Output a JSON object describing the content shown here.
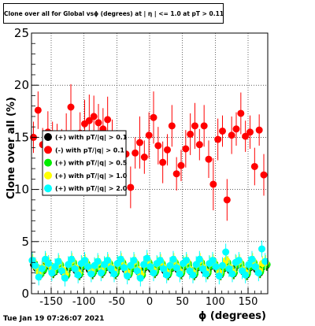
{
  "title": "Clone  over all for Global vsϕ (degrees) at | η | <= 1.0 at pT > 0.11",
  "timestamp": "Tue Jan 19 07:26:07 2021",
  "chart_data": {
    "type": "scatter",
    "xlabel": "ϕ (degrees)",
    "ylabel": "Clone  over all (%)",
    "xlim": [
      -180,
      180
    ],
    "ylim": [
      0,
      25
    ],
    "x_ticks": [
      "-150",
      "-100",
      "-50",
      "0",
      "50",
      "100",
      "150"
    ],
    "y_ticks": [
      "0",
      "5",
      "10",
      "15",
      "20",
      "25"
    ],
    "grid": true,
    "legend_position": "left",
    "legend": [
      {
        "label": "(+) with pT/|q| > 0.1",
        "color": "#000000"
      },
      {
        "label": "(-) with pT/|q| > 0.1",
        "color": "#ff0000"
      },
      {
        "label": "(+) with pT/|q| > 0.5",
        "color": "#00ee00"
      },
      {
        "label": "(+) with pT/|q| > 1.0",
        "color": "#ffff00"
      },
      {
        "label": "(+) with pT/|q| > 2.0",
        "color": "#00ffff"
      }
    ],
    "series": [
      {
        "name": "(-) with pT/|q| > 0.1",
        "color": "#ff0000",
        "x": [
          -177,
          -170,
          -163,
          -155,
          -148,
          -141,
          -134,
          -127,
          -120,
          -113,
          -106,
          -99,
          -92,
          -85,
          -78,
          -71,
          -64,
          -57,
          -50,
          -43,
          -36,
          -29,
          -22,
          -15,
          -8,
          -1,
          6,
          13,
          20,
          27,
          34,
          41,
          48,
          55,
          62,
          69,
          76,
          83,
          90,
          97,
          104,
          111,
          118,
          125,
          132,
          139,
          146,
          153,
          160,
          167,
          174
        ],
        "y": [
          15.0,
          17.6,
          14.3,
          15.5,
          15.1,
          14.8,
          14.2,
          15.3,
          17.9,
          13.8,
          15.4,
          16.3,
          16.6,
          17.0,
          16.4,
          15.8,
          16.7,
          14.9,
          13.1,
          12.6,
          13.4,
          10.2,
          13.5,
          14.5,
          13.1,
          15.2,
          16.9,
          14.2,
          12.6,
          13.8,
          16.1,
          11.5,
          12.3,
          13.9,
          15.3,
          16.1,
          14.3,
          16.1,
          12.9,
          10.5,
          14.8,
          15.6,
          9.0,
          15.2,
          15.8,
          17.3,
          15.1,
          15.5,
          12.2,
          15.7,
          11.4
        ],
        "err": [
          1.5,
          1.8,
          1.6,
          2.0,
          1.4,
          1.5,
          1.6,
          2.0,
          2.2,
          1.5,
          2.0,
          2.3,
          2.5,
          2.0,
          1.8,
          2.0,
          2.2,
          1.8,
          1.5,
          1.6,
          1.8,
          2.0,
          1.5,
          2.5,
          1.6,
          2.2,
          2.5,
          1.8,
          2.0,
          1.5,
          2.0,
          1.6,
          1.5,
          1.8,
          2.0,
          2.2,
          1.5,
          2.0,
          1.8,
          2.5,
          2.0,
          1.5,
          2.0,
          1.8,
          1.6,
          2.0,
          1.5,
          1.6,
          1.8,
          1.5,
          2.0
        ]
      },
      {
        "name": "(+) with pT/|q| > 0.1",
        "color": "#000000",
        "x": [
          -177,
          -172,
          -167,
          -162,
          -157,
          -152,
          -147,
          -142,
          -137,
          -132,
          -127,
          -122,
          -117,
          -112,
          -107,
          -102,
          -97,
          -92,
          -87,
          -82,
          -77,
          -72,
          -67,
          -62,
          -57,
          -52,
          -47,
          -42,
          -37,
          -32,
          -27,
          -22,
          -17,
          -12,
          -7,
          -2,
          3,
          8,
          13,
          18,
          23,
          28,
          33,
          38,
          43,
          48,
          53,
          58,
          63,
          68,
          73,
          78,
          83,
          88,
          93,
          98,
          103,
          108,
          113,
          118,
          123,
          128,
          133,
          138,
          143,
          148,
          153,
          158,
          163,
          168,
          173,
          178
        ],
        "y": [
          2.8,
          2.4,
          1.8,
          2.2,
          2.9,
          2.6,
          2.0,
          2.3,
          2.7,
          2.1,
          1.7,
          2.5,
          2.9,
          2.2,
          1.8,
          2.6,
          2.8,
          2.3,
          1.9,
          2.4,
          2.7,
          2.0,
          2.5,
          2.8,
          2.2,
          1.9,
          2.6,
          2.9,
          2.3,
          1.8,
          2.4,
          2.8,
          2.1,
          1.7,
          2.5,
          2.9,
          2.3,
          2.0,
          2.6,
          2.8,
          2.2,
          1.8,
          2.4,
          2.9,
          2.3,
          1.9,
          2.6,
          2.8,
          2.1,
          1.8,
          2.5,
          2.9,
          2.2,
          1.9,
          2.6,
          2.8,
          2.3,
          1.8,
          2.4,
          2.9,
          2.2,
          1.9,
          2.7,
          2.8,
          2.1,
          1.8,
          2.5,
          2.9,
          2.3,
          2.0,
          2.6,
          2.7
        ],
        "err": 0.5
      },
      {
        "name": "(+) with pT/|q| > 0.5",
        "color": "#00ee00",
        "x": [
          -176,
          -171,
          -166,
          -161,
          -156,
          -151,
          -146,
          -141,
          -136,
          -131,
          -126,
          -121,
          -116,
          -111,
          -106,
          -101,
          -96,
          -91,
          -86,
          -81,
          -76,
          -71,
          -66,
          -61,
          -56,
          -51,
          -46,
          -41,
          -36,
          -31,
          -26,
          -21,
          -16,
          -11,
          -6,
          -1,
          4,
          9,
          14,
          19,
          24,
          29,
          34,
          39,
          44,
          49,
          54,
          59,
          64,
          69,
          74,
          79,
          84,
          89,
          94,
          99,
          104,
          109,
          114,
          119,
          124,
          129,
          134,
          139,
          144,
          149,
          154,
          159,
          164,
          169,
          174,
          179
        ],
        "y": [
          2.9,
          2.5,
          1.9,
          2.3,
          3.0,
          2.7,
          2.1,
          2.4,
          2.8,
          2.2,
          1.8,
          2.6,
          3.0,
          2.3,
          1.9,
          2.7,
          2.9,
          2.4,
          2.0,
          2.5,
          2.8,
          2.1,
          2.6,
          2.9,
          2.3,
          2.0,
          2.7,
          3.0,
          2.4,
          1.9,
          2.5,
          2.9,
          2.2,
          1.8,
          2.6,
          3.0,
          2.4,
          2.1,
          2.7,
          2.9,
          2.3,
          1.9,
          2.5,
          3.0,
          2.4,
          2.0,
          2.7,
          2.9,
          2.2,
          1.9,
          2.6,
          3.0,
          2.3,
          2.0,
          2.7,
          2.9,
          2.4,
          1.9,
          2.5,
          3.0,
          2.3,
          2.0,
          2.8,
          2.9,
          2.2,
          1.9,
          2.6,
          3.0,
          2.4,
          2.1,
          2.7,
          2.8
        ],
        "err": 0.6
      },
      {
        "name": "(+) with pT/|q| > 1.0",
        "color": "#ffff00",
        "x": [
          -178,
          -173,
          -168,
          -163,
          -158,
          -153,
          -148,
          -143,
          -138,
          -133,
          -128,
          -123,
          -118,
          -113,
          -108,
          -103,
          -98,
          -93,
          -88,
          -83,
          -78,
          -73,
          -68,
          -63,
          -58,
          -53,
          -48,
          -43,
          -38,
          -33,
          -28,
          -23,
          -18,
          -13,
          -8,
          -3,
          2,
          7,
          12,
          17,
          22,
          27,
          32,
          37,
          42,
          47,
          52,
          57,
          62,
          67,
          72,
          77,
          82,
          87,
          92,
          97,
          102,
          107,
          112,
          117,
          122,
          127,
          132,
          137,
          142,
          147,
          152,
          157,
          162,
          167,
          172,
          177
        ],
        "y": [
          3.1,
          2.6,
          2.0,
          2.5,
          3.2,
          2.8,
          2.2,
          2.6,
          3.0,
          2.3,
          1.9,
          2.8,
          3.2,
          2.5,
          2.0,
          2.9,
          3.1,
          2.6,
          2.1,
          2.7,
          3.0,
          2.2,
          2.8,
          3.1,
          2.5,
          2.1,
          2.9,
          3.2,
          2.6,
          2.0,
          2.7,
          3.1,
          2.3,
          1.9,
          2.8,
          3.2,
          2.6,
          2.2,
          2.9,
          3.1,
          2.5,
          2.0,
          2.7,
          3.2,
          2.6,
          2.1,
          2.9,
          3.1,
          2.3,
          2.0,
          2.8,
          3.2,
          2.5,
          2.1,
          2.9,
          3.1,
          2.6,
          2.0,
          2.7,
          3.2,
          2.5,
          2.1,
          3.0,
          3.1,
          2.3,
          2.0,
          2.8,
          3.2,
          2.6,
          2.2,
          2.9,
          3.0
        ],
        "err": 0.7
      },
      {
        "name": "(+) with pT/|q| > 2.0",
        "color": "#00ffff",
        "x": [
          -179,
          -174,
          -169,
          -164,
          -159,
          -154,
          -149,
          -144,
          -139,
          -134,
          -129,
          -124,
          -119,
          -114,
          -109,
          -104,
          -99,
          -94,
          -89,
          -84,
          -79,
          -74,
          -69,
          -64,
          -59,
          -54,
          -49,
          -44,
          -39,
          -34,
          -29,
          -24,
          -19,
          -14,
          -9,
          -4,
          1,
          6,
          11,
          16,
          21,
          26,
          31,
          36,
          41,
          46,
          51,
          56,
          61,
          66,
          71,
          76,
          81,
          86,
          91,
          96,
          101,
          106,
          111,
          116,
          121,
          126,
          131,
          136,
          141,
          146,
          151,
          156,
          161,
          166,
          171,
          176
        ],
        "y": [
          3.2,
          2.7,
          1.6,
          2.4,
          3.3,
          2.9,
          2.0,
          2.6,
          3.1,
          2.2,
          1.5,
          2.8,
          3.3,
          2.4,
          1.8,
          2.9,
          3.2,
          2.6,
          1.9,
          2.7,
          3.1,
          2.0,
          2.8,
          3.2,
          2.4,
          1.9,
          2.9,
          3.3,
          2.5,
          1.7,
          2.7,
          3.2,
          2.2,
          1.5,
          2.8,
          3.4,
          2.6,
          2.0,
          2.9,
          3.2,
          2.4,
          1.8,
          2.7,
          3.3,
          2.5,
          1.9,
          2.9,
          3.2,
          2.2,
          1.8,
          2.8,
          3.3,
          2.4,
          1.9,
          2.9,
          3.2,
          2.6,
          1.7,
          2.7,
          4.0,
          2.4,
          1.9,
          3.0,
          3.2,
          2.2,
          1.8,
          2.8,
          3.3,
          2.6,
          2.0,
          4.3,
          3.1
        ],
        "err": 0.8
      }
    ]
  }
}
